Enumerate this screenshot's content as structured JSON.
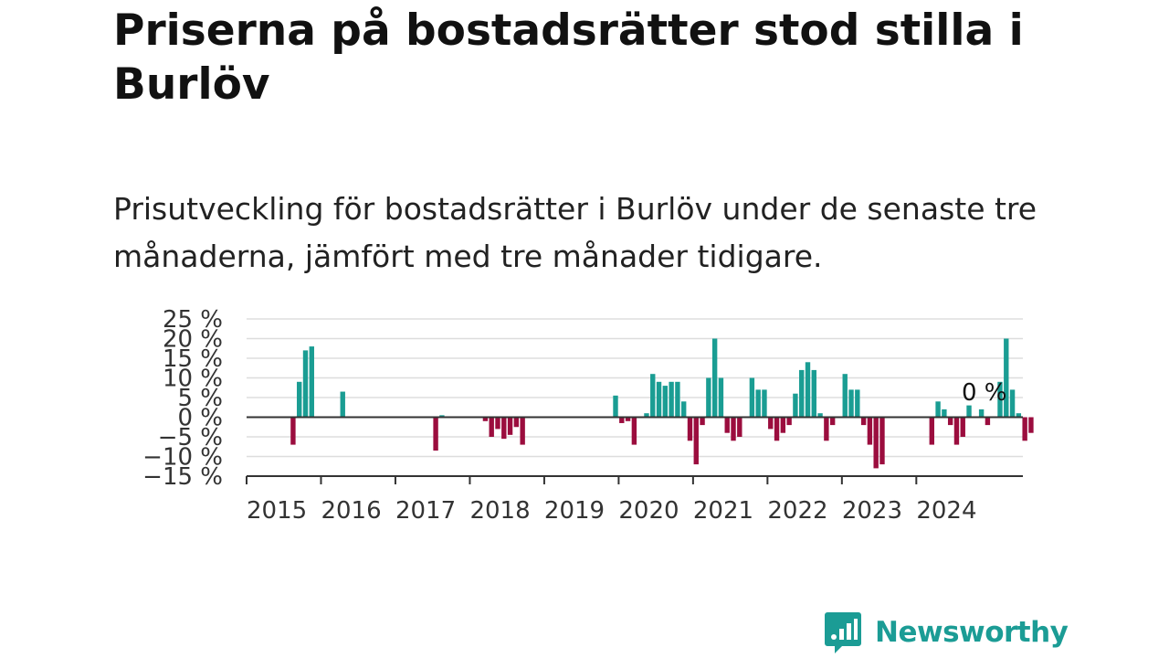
{
  "header": {
    "title": "Priserna på bostadsrätter stod stilla i Burlöv",
    "subtitle": "Prisutveckling för bostadsrätter i Burlöv under de senaste tre månaderna, jämfört med tre månader tidigare."
  },
  "brand": {
    "name": "Newsworthy",
    "icon": "newsworthy-logo-icon",
    "color": "#1b9c95"
  },
  "chart_data": {
    "type": "bar",
    "title": "",
    "xlabel": "",
    "ylabel": "",
    "y_unit": "%",
    "ylim": [
      -15,
      25
    ],
    "y_ticks": [
      25,
      20,
      15,
      10,
      5,
      0,
      -5,
      -10,
      -15
    ],
    "y_tick_labels": [
      "25 %",
      "20 %",
      "15 %",
      "10 %",
      "5 %",
      "0 %",
      "−5 %",
      "−10 %",
      "−15 %"
    ],
    "x_tick_labels": [
      "2015",
      "2016",
      "2017",
      "2018",
      "2019",
      "2020",
      "2021",
      "2022",
      "2023",
      "2024"
    ],
    "x_start": "2015-01",
    "grid": true,
    "legend": "none",
    "colors": {
      "positive": "#1a9d93",
      "negative": "#9b0d3e",
      "grid": "#dddddd",
      "axis": "#333333"
    },
    "last_value_label": "0 %",
    "series": [
      {
        "values": [
          null,
          null,
          null,
          null,
          null,
          null,
          null,
          -7,
          9,
          17,
          18,
          null,
          null,
          null,
          null,
          6.5,
          null,
          null,
          null,
          null,
          null,
          null,
          null,
          null,
          null,
          null,
          null,
          null,
          null,
          null,
          -8.5,
          0.5,
          null,
          null,
          null,
          null,
          null,
          null,
          -1,
          -5,
          -3,
          -5.5,
          -4.5,
          -2.5,
          -7,
          null,
          null,
          null,
          null,
          null,
          null,
          null,
          null,
          null,
          null,
          null,
          null,
          null,
          null,
          5.5,
          -1.5,
          -1,
          -7,
          null,
          1,
          11,
          9,
          8,
          9,
          9,
          4,
          -6,
          -12,
          -2,
          10,
          20,
          10,
          -4,
          -6,
          -5,
          null,
          10,
          7,
          7,
          -3,
          -6,
          -4,
          -2,
          6,
          12,
          14,
          12,
          1,
          -6,
          -2,
          null,
          11,
          7,
          7,
          -2,
          -7,
          -13,
          -12,
          null,
          null,
          null,
          null,
          null,
          null,
          null,
          -7,
          4,
          2,
          -2,
          -7,
          -5,
          3,
          null,
          2,
          -2,
          null,
          9,
          20,
          7,
          1,
          -6,
          -4,
          0
        ]
      }
    ]
  }
}
